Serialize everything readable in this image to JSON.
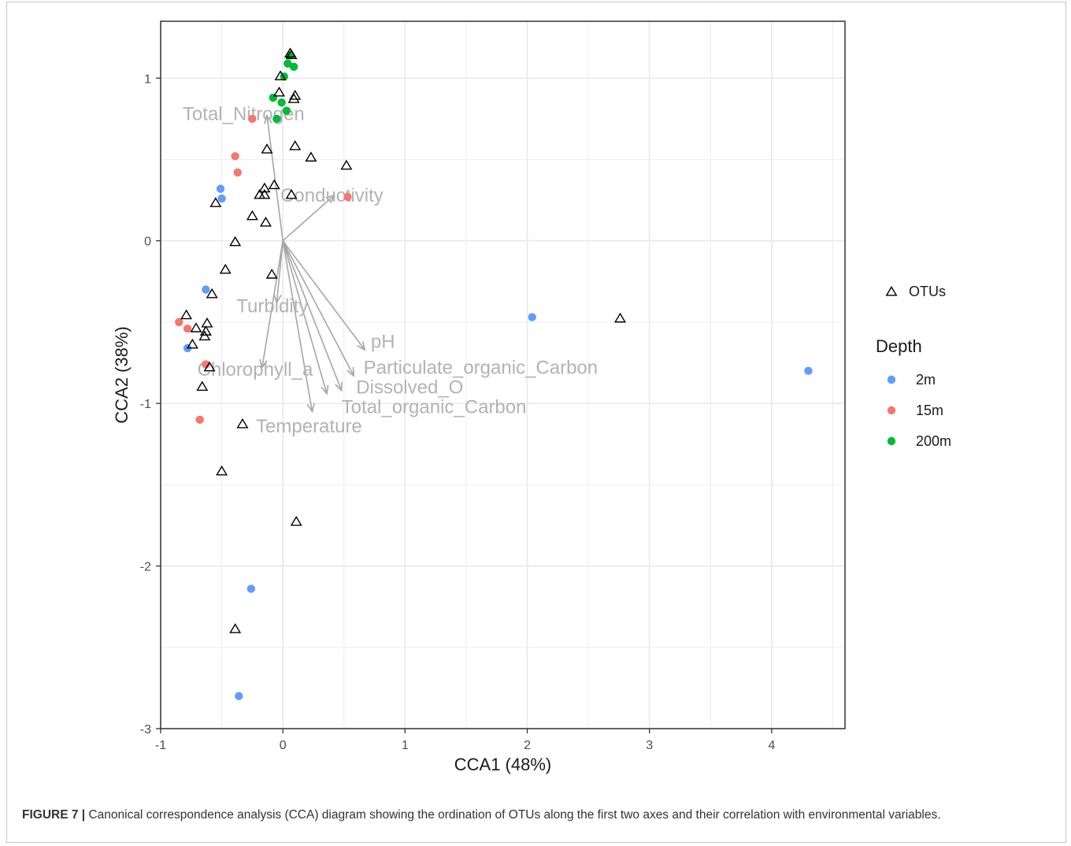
{
  "caption": {
    "label": "FIGURE 7 |",
    "text": " Canonical correspondence analysis (CCA) diagram showing the ordination of OTUs along the first two axes and their correlation with environmental variables."
  },
  "chart_data": {
    "type": "scatter",
    "xlabel": "CCA1 (48%)",
    "ylabel": "CCA2 (38%)",
    "xlim": [
      -1.0,
      4.6
    ],
    "ylim": [
      -3.0,
      1.35
    ],
    "x_ticks": [
      -1,
      0,
      1,
      2,
      3,
      4
    ],
    "y_ticks": [
      -3,
      -2,
      -1,
      0,
      1
    ],
    "grid": true,
    "legend": {
      "position": "right",
      "otu_label": "OTUs",
      "depth_title": "Depth",
      "depth_levels": [
        {
          "name": "2m",
          "color": "#619CFF"
        },
        {
          "name": "15m",
          "color": "#F8766D"
        },
        {
          "name": "200m",
          "color": "#00BA38"
        }
      ]
    },
    "otus": [
      [
        0.06,
        1.15
      ],
      [
        0.07,
        1.14
      ],
      [
        -0.02,
        1.01
      ],
      [
        0.1,
        0.89
      ],
      [
        0.09,
        0.87
      ],
      [
        -0.03,
        0.91
      ],
      [
        -0.13,
        0.56
      ],
      [
        0.1,
        0.58
      ],
      [
        0.23,
        0.51
      ],
      [
        0.52,
        0.46
      ],
      [
        -0.07,
        0.34
      ],
      [
        -0.15,
        0.32
      ],
      [
        -0.19,
        0.28
      ],
      [
        -0.15,
        0.28
      ],
      [
        0.07,
        0.28
      ],
      [
        -0.55,
        0.23
      ],
      [
        -0.25,
        0.15
      ],
      [
        -0.14,
        0.11
      ],
      [
        -0.39,
        -0.01
      ],
      [
        -0.47,
        -0.18
      ],
      [
        -0.09,
        -0.21
      ],
      [
        -0.58,
        -0.33
      ],
      [
        -0.79,
        -0.46
      ],
      [
        -0.71,
        -0.54
      ],
      [
        -0.62,
        -0.51
      ],
      [
        -0.63,
        -0.56
      ],
      [
        -0.64,
        -0.59
      ],
      [
        -0.74,
        -0.64
      ],
      [
        -0.6,
        -0.78
      ],
      [
        -0.66,
        -0.9
      ],
      [
        -0.33,
        -1.13
      ],
      [
        -0.5,
        -1.42
      ],
      [
        0.11,
        -1.73
      ],
      [
        -0.39,
        -2.39
      ],
      [
        2.76,
        -0.48
      ]
    ],
    "sites": [
      {
        "depth": "200m",
        "points": [
          [
            0.06,
            1.14
          ],
          [
            0.01,
            1.01
          ],
          [
            0.04,
            1.09
          ],
          [
            0.09,
            1.07
          ],
          [
            -0.08,
            0.88
          ],
          [
            -0.01,
            0.85
          ],
          [
            0.03,
            0.8
          ],
          [
            -0.05,
            0.75
          ]
        ]
      },
      {
        "depth": "15m",
        "points": [
          [
            -0.25,
            0.75
          ],
          [
            -0.39,
            0.52
          ],
          [
            -0.37,
            0.42
          ],
          [
            0.53,
            0.27
          ],
          [
            -0.85,
            -0.5
          ],
          [
            -0.78,
            -0.54
          ],
          [
            -0.63,
            -0.76
          ],
          [
            -0.68,
            -1.1
          ]
        ]
      },
      {
        "depth": "2m",
        "points": [
          [
            -0.51,
            0.32
          ],
          [
            -0.5,
            0.26
          ],
          [
            -0.63,
            -0.3
          ],
          [
            -0.78,
            -0.66
          ],
          [
            2.04,
            -0.47
          ],
          [
            4.3,
            -0.8
          ],
          [
            -0.26,
            -2.14
          ],
          [
            -0.36,
            -2.8
          ]
        ]
      }
    ],
    "env_vectors": [
      {
        "name": "Total_Nitrogen",
        "x": -0.13,
        "y": 0.77,
        "label_x": -0.82,
        "label_y": 0.78
      },
      {
        "name": "Conductivity",
        "x": 0.42,
        "y": 0.28,
        "label_x": -0.02,
        "label_y": 0.28
      },
      {
        "name": "Turbidity",
        "x": -0.05,
        "y": -0.38,
        "label_x": -0.38,
        "label_y": -0.4
      },
      {
        "name": "pH",
        "x": 0.67,
        "y": -0.67,
        "label_x": 0.72,
        "label_y": -0.62
      },
      {
        "name": "Particulate_organic_Carbon",
        "x": 0.58,
        "y": -0.83,
        "label_x": 0.66,
        "label_y": -0.78
      },
      {
        "name": "Chlorophyll_a",
        "x": -0.17,
        "y": -0.78,
        "label_x": -0.7,
        "label_y": -0.79
      },
      {
        "name": "Dissolved_O",
        "x": 0.48,
        "y": -0.92,
        "label_x": 0.6,
        "label_y": -0.9
      },
      {
        "name": "Total_organic_Carbon",
        "x": 0.36,
        "y": -0.94,
        "label_x": 0.48,
        "label_y": -1.02
      },
      {
        "name": "Temperature",
        "x": 0.24,
        "y": -1.05,
        "label_x": -0.22,
        "label_y": -1.14
      }
    ]
  }
}
